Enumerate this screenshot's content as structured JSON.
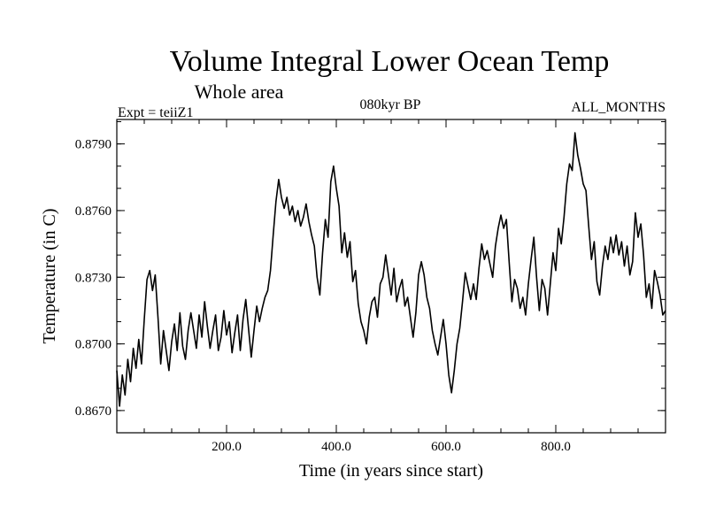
{
  "chart_data": {
    "type": "line",
    "title": "Volume Integral Lower Ocean Temp",
    "subtitle": "Whole area",
    "left_label": "Expt = teiiZ1",
    "center_label": "080kyr BP",
    "right_label": "ALL_MONTHS",
    "xlabel": "Time (in years since start)",
    "ylabel": "Temperature (in C)",
    "xlim": [
      0,
      1000
    ],
    "ylim": [
      0.866,
      0.8801
    ],
    "xticks": [
      200,
      400,
      600,
      800
    ],
    "xtick_labels": [
      "200.0",
      "400.0",
      "600.0",
      "800.0"
    ],
    "yticks": [
      0.867,
      0.87,
      0.873,
      0.876,
      0.879
    ],
    "ytick_labels": [
      "0.8670",
      "0.8700",
      "0.8730",
      "0.8760",
      "0.8790"
    ],
    "grid": false,
    "series": [
      {
        "values": [
          [
            0,
            0.8688
          ],
          [
            5,
            0.8672
          ],
          [
            10,
            0.8686
          ],
          [
            15,
            0.8677
          ],
          [
            20,
            0.8693
          ],
          [
            25,
            0.8683
          ],
          [
            30,
            0.8698
          ],
          [
            35,
            0.8689
          ],
          [
            40,
            0.8702
          ],
          [
            45,
            0.8691
          ],
          [
            50,
            0.8711
          ],
          [
            55,
            0.8729
          ],
          [
            60,
            0.8733
          ],
          [
            65,
            0.8724
          ],
          [
            70,
            0.8731
          ],
          [
            75,
            0.8712
          ],
          [
            80,
            0.8691
          ],
          [
            85,
            0.8706
          ],
          [
            90,
            0.8697
          ],
          [
            95,
            0.8688
          ],
          [
            100,
            0.8701
          ],
          [
            105,
            0.8709
          ],
          [
            110,
            0.8697
          ],
          [
            115,
            0.8714
          ],
          [
            120,
            0.8699
          ],
          [
            125,
            0.8693
          ],
          [
            130,
            0.8706
          ],
          [
            135,
            0.8714
          ],
          [
            140,
            0.8706
          ],
          [
            145,
            0.8698
          ],
          [
            150,
            0.8713
          ],
          [
            155,
            0.8703
          ],
          [
            160,
            0.8719
          ],
          [
            165,
            0.8708
          ],
          [
            170,
            0.8698
          ],
          [
            175,
            0.8706
          ],
          [
            180,
            0.8713
          ],
          [
            185,
            0.8697
          ],
          [
            190,
            0.8703
          ],
          [
            195,
            0.8715
          ],
          [
            200,
            0.8704
          ],
          [
            205,
            0.871
          ],
          [
            210,
            0.8696
          ],
          [
            215,
            0.8705
          ],
          [
            220,
            0.8713
          ],
          [
            225,
            0.8697
          ],
          [
            230,
            0.8711
          ],
          [
            235,
            0.872
          ],
          [
            240,
            0.8707
          ],
          [
            245,
            0.8694
          ],
          [
            250,
            0.8706
          ],
          [
            255,
            0.8717
          ],
          [
            260,
            0.871
          ],
          [
            265,
            0.8716
          ],
          [
            270,
            0.8721
          ],
          [
            275,
            0.8724
          ],
          [
            280,
            0.8733
          ],
          [
            285,
            0.8749
          ],
          [
            290,
            0.8764
          ],
          [
            295,
            0.8774
          ],
          [
            300,
            0.8766
          ],
          [
            305,
            0.8761
          ],
          [
            310,
            0.8766
          ],
          [
            315,
            0.8758
          ],
          [
            320,
            0.8762
          ],
          [
            325,
            0.8755
          ],
          [
            330,
            0.876
          ],
          [
            335,
            0.8753
          ],
          [
            340,
            0.8757
          ],
          [
            345,
            0.8763
          ],
          [
            350,
            0.8755
          ],
          [
            355,
            0.8749
          ],
          [
            360,
            0.8744
          ],
          [
            365,
            0.873
          ],
          [
            370,
            0.8722
          ],
          [
            375,
            0.8741
          ],
          [
            380,
            0.8756
          ],
          [
            385,
            0.8748
          ],
          [
            390,
            0.8773
          ],
          [
            395,
            0.878
          ],
          [
            400,
            0.877
          ],
          [
            405,
            0.8762
          ],
          [
            410,
            0.8741
          ],
          [
            415,
            0.875
          ],
          [
            420,
            0.8739
          ],
          [
            425,
            0.8746
          ],
          [
            430,
            0.8728
          ],
          [
            435,
            0.8733
          ],
          [
            440,
            0.8718
          ],
          [
            445,
            0.871
          ],
          [
            450,
            0.8706
          ],
          [
            455,
            0.87
          ],
          [
            460,
            0.8712
          ],
          [
            465,
            0.8719
          ],
          [
            470,
            0.8721
          ],
          [
            475,
            0.8712
          ],
          [
            480,
            0.8727
          ],
          [
            485,
            0.873
          ],
          [
            490,
            0.874
          ],
          [
            495,
            0.8731
          ],
          [
            500,
            0.8722
          ],
          [
            505,
            0.8734
          ],
          [
            510,
            0.8719
          ],
          [
            515,
            0.8725
          ],
          [
            520,
            0.8729
          ],
          [
            525,
            0.8717
          ],
          [
            530,
            0.8721
          ],
          [
            535,
            0.8712
          ],
          [
            540,
            0.8703
          ],
          [
            545,
            0.8714
          ],
          [
            550,
            0.8731
          ],
          [
            555,
            0.8737
          ],
          [
            560,
            0.8731
          ],
          [
            565,
            0.8721
          ],
          [
            570,
            0.8716
          ],
          [
            575,
            0.8706
          ],
          [
            580,
            0.87
          ],
          [
            585,
            0.8695
          ],
          [
            590,
            0.8703
          ],
          [
            595,
            0.8711
          ],
          [
            600,
            0.87
          ],
          [
            605,
            0.8686
          ],
          [
            610,
            0.8678
          ],
          [
            615,
            0.8688
          ],
          [
            620,
            0.87
          ],
          [
            625,
            0.8707
          ],
          [
            630,
            0.8719
          ],
          [
            635,
            0.8732
          ],
          [
            640,
            0.8726
          ],
          [
            645,
            0.872
          ],
          [
            650,
            0.8727
          ],
          [
            655,
            0.872
          ],
          [
            660,
            0.8734
          ],
          [
            665,
            0.8745
          ],
          [
            670,
            0.8738
          ],
          [
            675,
            0.8742
          ],
          [
            680,
            0.8736
          ],
          [
            685,
            0.873
          ],
          [
            690,
            0.8744
          ],
          [
            695,
            0.8752
          ],
          [
            700,
            0.8758
          ],
          [
            705,
            0.8752
          ],
          [
            710,
            0.8756
          ],
          [
            715,
            0.8737
          ],
          [
            720,
            0.8719
          ],
          [
            725,
            0.8729
          ],
          [
            730,
            0.8725
          ],
          [
            735,
            0.8716
          ],
          [
            740,
            0.8721
          ],
          [
            745,
            0.8713
          ],
          [
            750,
            0.8727
          ],
          [
            755,
            0.8738
          ],
          [
            760,
            0.8748
          ],
          [
            765,
            0.873
          ],
          [
            770,
            0.8715
          ],
          [
            775,
            0.8729
          ],
          [
            780,
            0.8725
          ],
          [
            785,
            0.8713
          ],
          [
            790,
            0.8727
          ],
          [
            795,
            0.8741
          ],
          [
            800,
            0.8733
          ],
          [
            805,
            0.8752
          ],
          [
            810,
            0.8745
          ],
          [
            815,
            0.8757
          ],
          [
            820,
            0.8772
          ],
          [
            825,
            0.8781
          ],
          [
            830,
            0.8778
          ],
          [
            835,
            0.8795
          ],
          [
            840,
            0.8785
          ],
          [
            845,
            0.8779
          ],
          [
            850,
            0.8772
          ],
          [
            855,
            0.8769
          ],
          [
            860,
            0.8753
          ],
          [
            865,
            0.8738
          ],
          [
            870,
            0.8746
          ],
          [
            875,
            0.8728
          ],
          [
            880,
            0.8722
          ],
          [
            885,
            0.8735
          ],
          [
            890,
            0.8744
          ],
          [
            895,
            0.8738
          ],
          [
            900,
            0.8748
          ],
          [
            905,
            0.8741
          ],
          [
            910,
            0.8749
          ],
          [
            915,
            0.874
          ],
          [
            920,
            0.8746
          ],
          [
            925,
            0.8735
          ],
          [
            930,
            0.8744
          ],
          [
            935,
            0.8731
          ],
          [
            940,
            0.8737
          ],
          [
            945,
            0.8759
          ],
          [
            950,
            0.8748
          ],
          [
            955,
            0.8754
          ],
          [
            960,
            0.874
          ],
          [
            965,
            0.8721
          ],
          [
            970,
            0.8727
          ],
          [
            975,
            0.8716
          ],
          [
            980,
            0.8733
          ],
          [
            985,
            0.8728
          ],
          [
            990,
            0.8722
          ],
          [
            995,
            0.8713
          ],
          [
            1000,
            0.8715
          ]
        ]
      }
    ]
  }
}
